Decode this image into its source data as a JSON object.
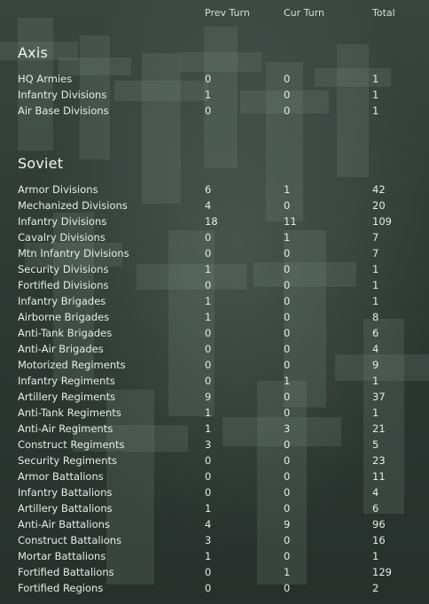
{
  "headers": {
    "prev": "Prev Turn",
    "cur": "Cur Turn",
    "total": "Total"
  },
  "sections": [
    {
      "title": "Axis",
      "rows": [
        {
          "label": "HQ Armies",
          "prev": "0",
          "cur": "0",
          "total": "1"
        },
        {
          "label": "Infantry Divisions",
          "prev": "1",
          "cur": "0",
          "total": "1"
        },
        {
          "label": "Air Base Divisions",
          "prev": "0",
          "cur": "0",
          "total": "1"
        }
      ]
    },
    {
      "title": "Soviet",
      "rows": [
        {
          "label": "Armor Divisions",
          "prev": "6",
          "cur": "1",
          "total": "42"
        },
        {
          "label": "Mechanized Divisions",
          "prev": "4",
          "cur": "0",
          "total": "20"
        },
        {
          "label": "Infantry Divisions",
          "prev": "18",
          "cur": "11",
          "total": "109"
        },
        {
          "label": "Cavalry Divisions",
          "prev": "0",
          "cur": "1",
          "total": "7"
        },
        {
          "label": "Mtn Infantry Divisions",
          "prev": "0",
          "cur": "0",
          "total": "7"
        },
        {
          "label": "Security Divisions",
          "prev": "1",
          "cur": "0",
          "total": "1"
        },
        {
          "label": "Fortified Divisions",
          "prev": "0",
          "cur": "0",
          "total": "1"
        },
        {
          "label": "Infantry Brigades",
          "prev": "1",
          "cur": "0",
          "total": "1"
        },
        {
          "label": "Airborne Brigades",
          "prev": "1",
          "cur": "0",
          "total": "8"
        },
        {
          "label": "Anti-Tank Brigades",
          "prev": "0",
          "cur": "0",
          "total": "6"
        },
        {
          "label": "Anti-Air Brigades",
          "prev": "0",
          "cur": "0",
          "total": "4"
        },
        {
          "label": "Motorized Regiments",
          "prev": "0",
          "cur": "0",
          "total": "9"
        },
        {
          "label": "Infantry Regiments",
          "prev": "0",
          "cur": "1",
          "total": "1"
        },
        {
          "label": "Artillery Regiments",
          "prev": "9",
          "cur": "0",
          "total": "37"
        },
        {
          "label": "Anti-Tank Regiments",
          "prev": "1",
          "cur": "0",
          "total": "1"
        },
        {
          "label": "Anti-Air Regiments",
          "prev": "1",
          "cur": "3",
          "total": "21"
        },
        {
          "label": "Construct Regiments",
          "prev": "3",
          "cur": "0",
          "total": "5"
        },
        {
          "label": "Security Regiments",
          "prev": "0",
          "cur": "0",
          "total": "23"
        },
        {
          "label": "Armor Battalions",
          "prev": "0",
          "cur": "0",
          "total": "11"
        },
        {
          "label": "Infantry Battalions",
          "prev": "0",
          "cur": "0",
          "total": "4"
        },
        {
          "label": "Artillery Battalions",
          "prev": "1",
          "cur": "0",
          "total": "6"
        },
        {
          "label": "Anti-Air Battalions",
          "prev": "4",
          "cur": "9",
          "total": "96"
        },
        {
          "label": "Construct Battalions",
          "prev": "3",
          "cur": "0",
          "total": "16"
        },
        {
          "label": "Mortar Battalions",
          "prev": "1",
          "cur": "0",
          "total": "1"
        },
        {
          "label": "Fortified Battalions",
          "prev": "0",
          "cur": "1",
          "total": "129"
        },
        {
          "label": "Fortified Regions",
          "prev": "0",
          "cur": "0",
          "total": "2"
        }
      ]
    }
  ]
}
